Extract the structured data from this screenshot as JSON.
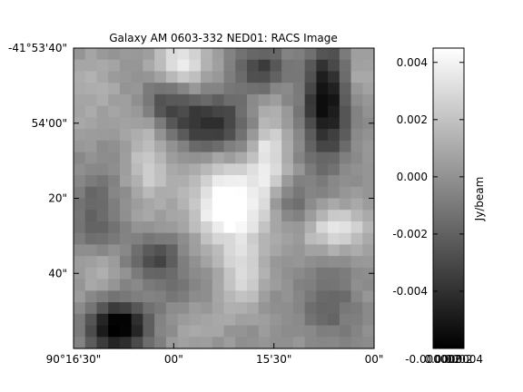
{
  "chart_data": {
    "type": "heatmap",
    "title": "Galaxy AM 0603-332 NED01: RACS Image",
    "x_ticks": [
      "90°16'30\"",
      "00\"",
      "15'30\"",
      "00\""
    ],
    "y_ticks": [
      "-41°53'40\"",
      "54'00\"",
      "20\"",
      "40\""
    ],
    "colorbar": {
      "label": "Jy/beam",
      "ticks": [
        "0.004",
        "0.002",
        "0.000",
        "-0.002",
        "-0.004"
      ],
      "tick_values": [
        0.004,
        0.002,
        0.0,
        -0.002,
        -0.004
      ],
      "bottom_ticks": [
        "-0.000002",
        "0.0000",
        "0.0002",
        "0.0004"
      ],
      "vmin": -0.006,
      "vmax": 0.0045,
      "colormap": "gray"
    },
    "grid": false,
    "sources": [
      {
        "x": 0.36,
        "y": 0.05,
        "amp": 0.004,
        "sx": 0.06,
        "sy": 0.05
      },
      {
        "x": 0.05,
        "y": 0.15,
        "amp": 0.0012,
        "sx": 0.08,
        "sy": 0.1
      },
      {
        "x": 0.3,
        "y": 0.18,
        "amp": -0.0025,
        "sx": 0.05,
        "sy": 0.05
      },
      {
        "x": 0.62,
        "y": 0.07,
        "amp": -0.0035,
        "sx": 0.06,
        "sy": 0.05
      },
      {
        "x": 0.84,
        "y": 0.18,
        "amp": -0.006,
        "sx": 0.05,
        "sy": 0.13
      },
      {
        "x": 0.95,
        "y": 0.1,
        "amp": 0.0015,
        "sx": 0.04,
        "sy": 0.06
      },
      {
        "x": 0.45,
        "y": 0.25,
        "amp": -0.0045,
        "sx": 0.09,
        "sy": 0.06
      },
      {
        "x": 0.25,
        "y": 0.38,
        "amp": 0.0025,
        "sx": 0.05,
        "sy": 0.11
      },
      {
        "x": 0.07,
        "y": 0.55,
        "amp": -0.002,
        "sx": 0.06,
        "sy": 0.1
      },
      {
        "x": 0.52,
        "y": 0.52,
        "amp": 0.0055,
        "sx": 0.09,
        "sy": 0.09
      },
      {
        "x": 0.65,
        "y": 0.35,
        "amp": 0.0035,
        "sx": 0.04,
        "sy": 0.1
      },
      {
        "x": 0.56,
        "y": 0.75,
        "amp": 0.003,
        "sx": 0.05,
        "sy": 0.08
      },
      {
        "x": 0.72,
        "y": 0.52,
        "amp": -0.0022,
        "sx": 0.05,
        "sy": 0.05
      },
      {
        "x": 0.88,
        "y": 0.6,
        "amp": 0.0035,
        "sx": 0.08,
        "sy": 0.05
      },
      {
        "x": 0.28,
        "y": 0.7,
        "amp": -0.003,
        "sx": 0.06,
        "sy": 0.05
      },
      {
        "x": 0.15,
        "y": 0.93,
        "amp": -0.0065,
        "sx": 0.07,
        "sy": 0.06
      },
      {
        "x": 0.08,
        "y": 0.75,
        "amp": 0.0015,
        "sx": 0.05,
        "sy": 0.06
      },
      {
        "x": 0.41,
        "y": 0.92,
        "amp": 0.0008,
        "sx": 0.08,
        "sy": 0.05
      },
      {
        "x": 0.85,
        "y": 0.85,
        "amp": -0.002,
        "sx": 0.06,
        "sy": 0.08
      },
      {
        "x": 0.35,
        "y": 0.82,
        "amp": -0.001,
        "sx": 0.05,
        "sy": 0.05
      }
    ],
    "baseline": 0.0,
    "noise_seed": 7
  }
}
